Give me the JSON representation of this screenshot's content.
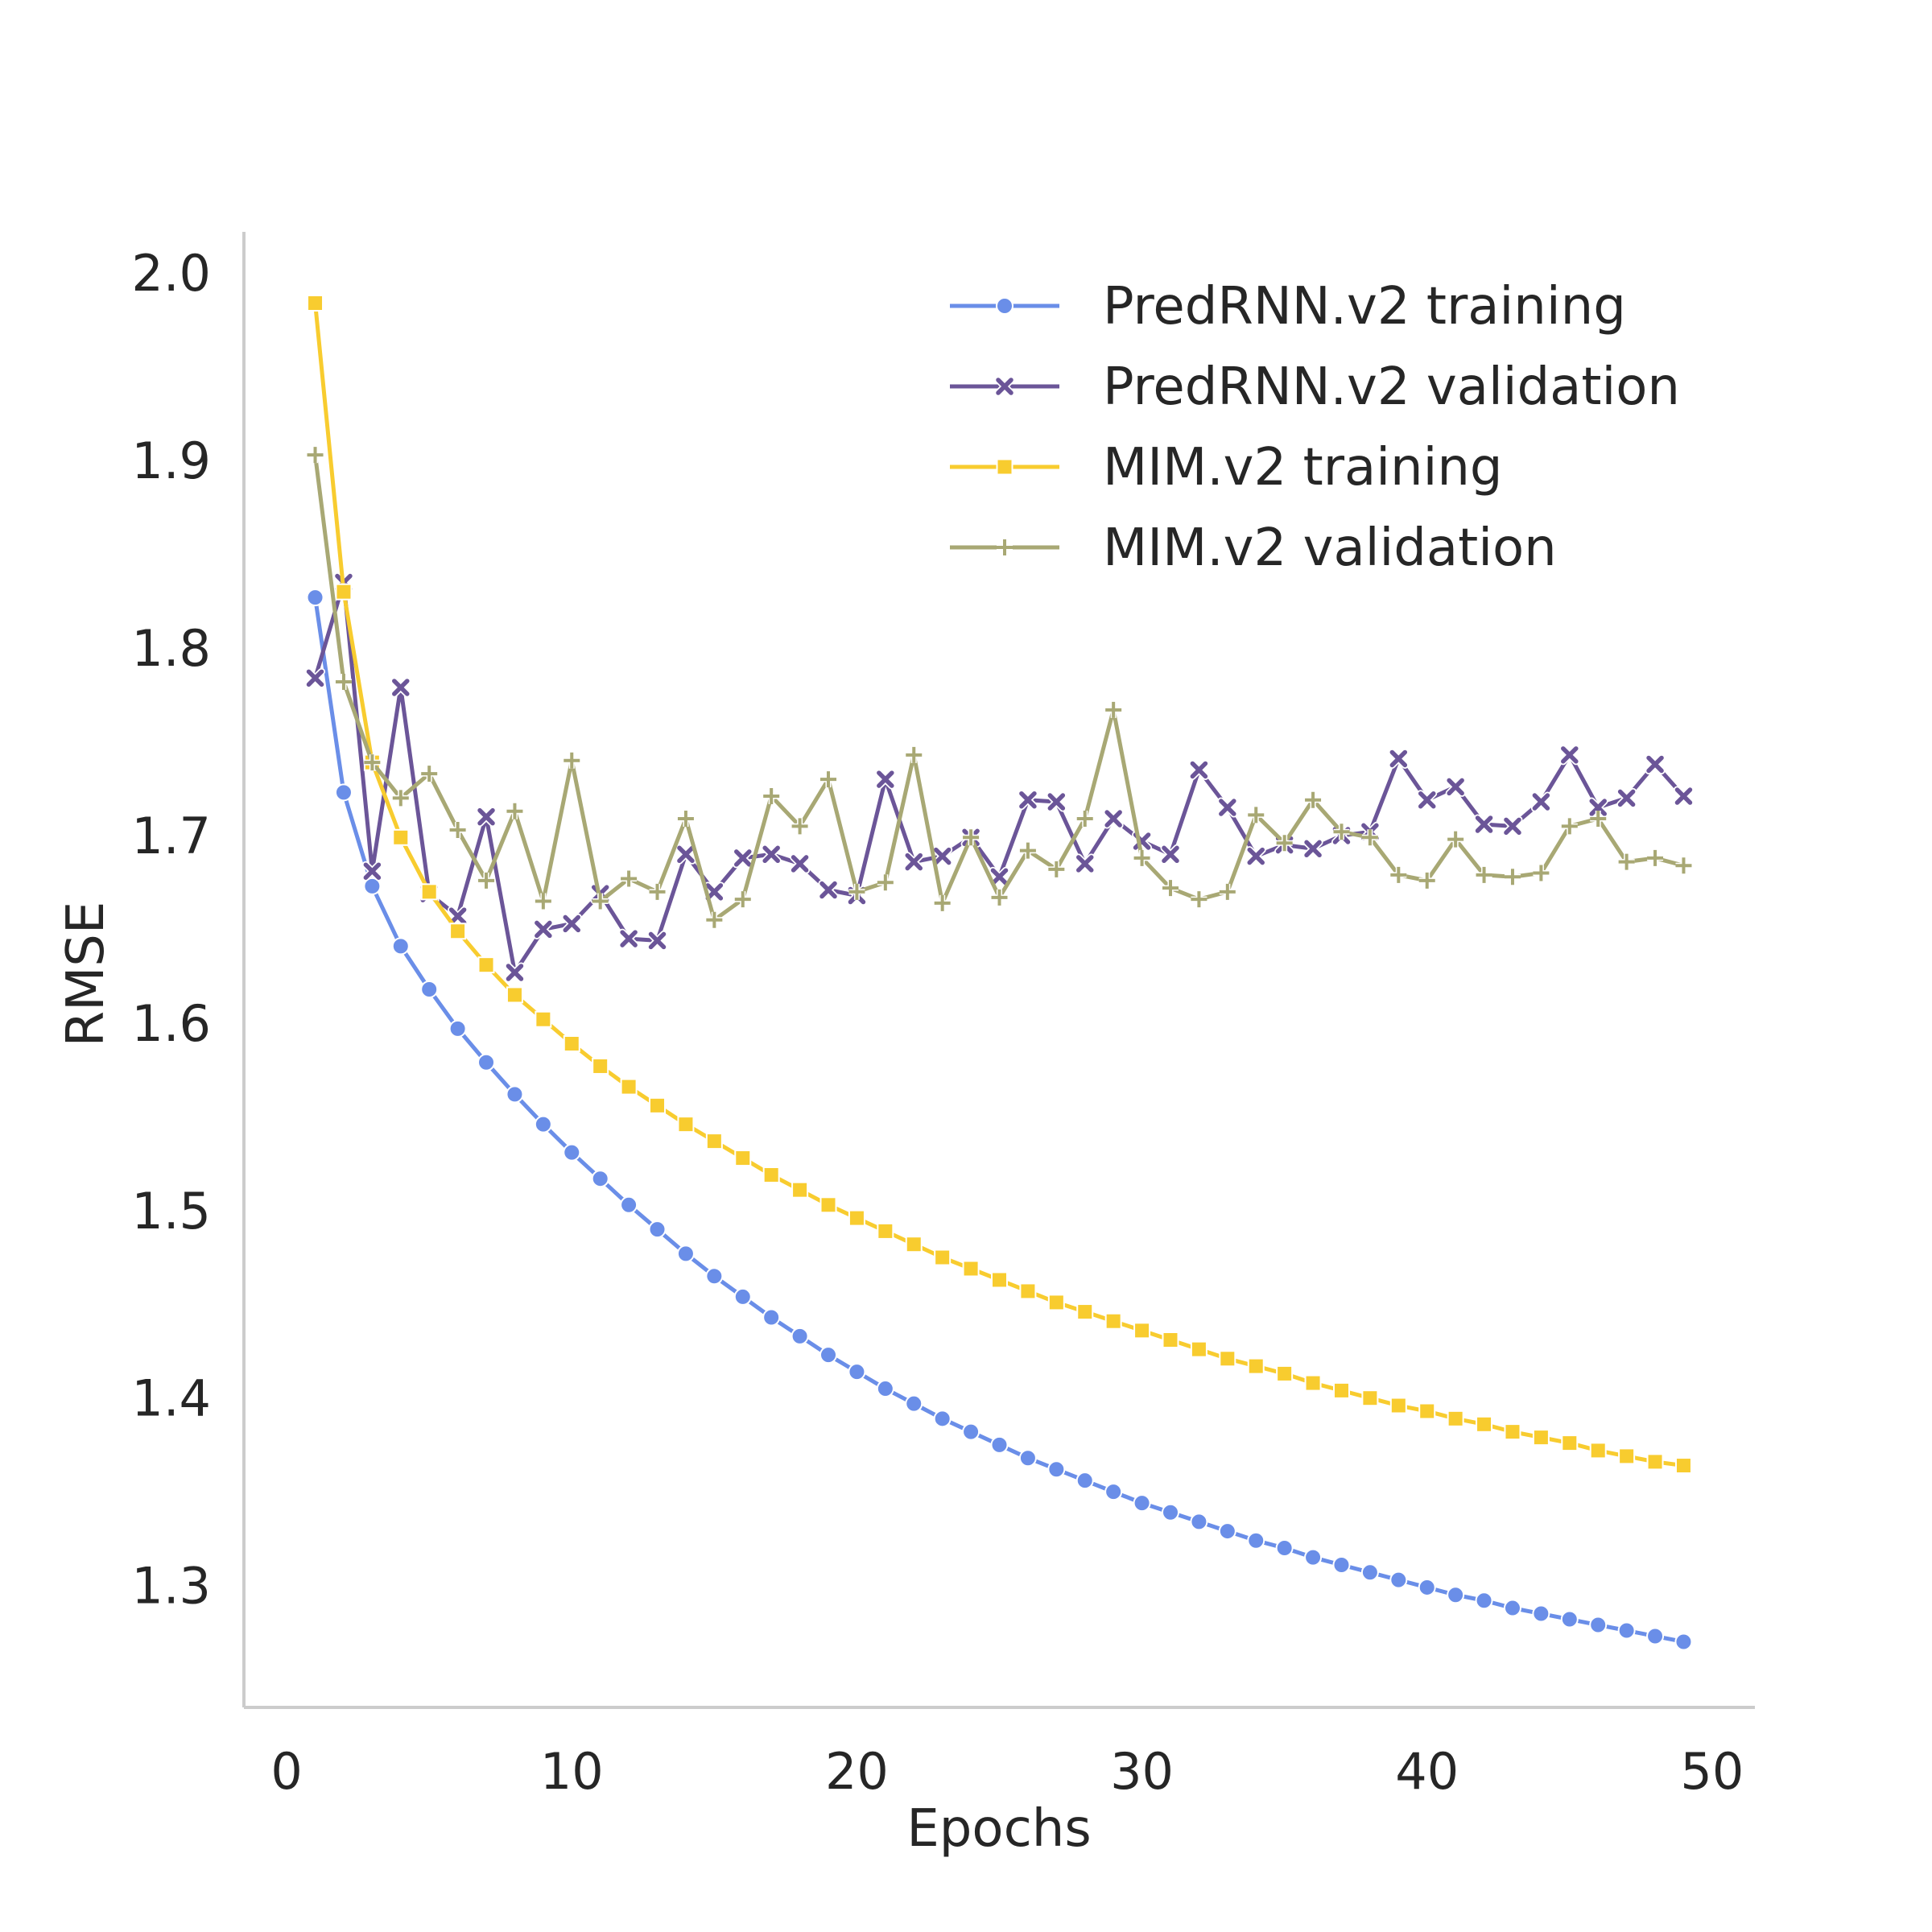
{
  "chart_data": {
    "type": "line",
    "title": "",
    "xlabel": "Epochs",
    "ylabel": "RMSE",
    "xlim": [
      -1.5,
      51.5
    ],
    "ylim": [
      1.235,
      2.022
    ],
    "xticks": [
      0,
      10,
      20,
      30,
      40,
      50
    ],
    "xtick_labels": [
      "0",
      "10",
      "20",
      "30",
      "40",
      "50"
    ],
    "yticks": [
      1.3,
      1.4,
      1.5,
      1.6,
      1.7,
      1.8,
      1.9,
      2.0
    ],
    "ytick_labels": [
      "1.3",
      "1.4",
      "1.5",
      "1.6",
      "1.7",
      "1.8",
      "1.9",
      "2.0"
    ],
    "grid": false,
    "legend_position": "top-right",
    "x": [
      1,
      2,
      3,
      4,
      5,
      6,
      7,
      8,
      9,
      10,
      11,
      12,
      13,
      14,
      15,
      16,
      17,
      18,
      19,
      20,
      21,
      22,
      23,
      24,
      25,
      26,
      27,
      28,
      29,
      30,
      31,
      32,
      33,
      34,
      35,
      36,
      37,
      38,
      39,
      40,
      41,
      42,
      43,
      44,
      45,
      46,
      47,
      48,
      49
    ],
    "series": [
      {
        "name": "PredRNN.v2 training",
        "color": "#6a8ee8",
        "marker": "circle",
        "values": [
          1.827,
          1.723,
          1.673,
          1.641,
          1.618,
          1.597,
          1.579,
          1.562,
          1.546,
          1.531,
          1.517,
          1.503,
          1.49,
          1.477,
          1.465,
          1.454,
          1.443,
          1.433,
          1.423,
          1.414,
          1.405,
          1.397,
          1.389,
          1.382,
          1.375,
          1.368,
          1.362,
          1.356,
          1.35,
          1.344,
          1.339,
          1.334,
          1.329,
          1.324,
          1.32,
          1.315,
          1.311,
          1.307,
          1.303,
          1.299,
          1.295,
          1.292,
          1.288,
          1.285,
          1.282,
          1.279,
          1.276,
          1.273,
          1.27
        ]
      },
      {
        "name": "PredRNN.v2 validation",
        "color": "#6b5598",
        "marker": "x",
        "values": [
          1.784,
          1.835,
          1.681,
          1.779,
          1.669,
          1.657,
          1.71,
          1.627,
          1.65,
          1.653,
          1.669,
          1.645,
          1.644,
          1.69,
          1.67,
          1.688,
          1.69,
          1.685,
          1.671,
          1.668,
          1.73,
          1.686,
          1.689,
          1.699,
          1.678,
          1.719,
          1.718,
          1.685,
          1.709,
          1.697,
          1.69,
          1.735,
          1.715,
          1.689,
          1.695,
          1.693,
          1.7,
          1.702,
          1.741,
          1.719,
          1.726,
          1.706,
          1.705,
          1.718,
          1.743,
          1.715,
          1.72,
          1.738,
          1.721
        ]
      },
      {
        "name": "MIM.v2 training",
        "color": "#f8cc2f",
        "marker": "square",
        "values": [
          1.984,
          1.83,
          1.739,
          1.699,
          1.67,
          1.649,
          1.631,
          1.615,
          1.602,
          1.589,
          1.577,
          1.566,
          1.556,
          1.546,
          1.537,
          1.528,
          1.519,
          1.511,
          1.503,
          1.496,
          1.489,
          1.482,
          1.475,
          1.469,
          1.463,
          1.457,
          1.451,
          1.446,
          1.441,
          1.436,
          1.431,
          1.426,
          1.421,
          1.417,
          1.413,
          1.408,
          1.404,
          1.4,
          1.396,
          1.393,
          1.389,
          1.386,
          1.382,
          1.379,
          1.376,
          1.372,
          1.369,
          1.366,
          1.364
        ]
      },
      {
        "name": "MIM.v2 validation",
        "color": "#a8a874",
        "marker": "plus",
        "values": [
          1.903,
          1.782,
          1.739,
          1.72,
          1.733,
          1.703,
          1.676,
          1.713,
          1.665,
          1.74,
          1.665,
          1.677,
          1.67,
          1.709,
          1.655,
          1.666,
          1.721,
          1.705,
          1.73,
          1.67,
          1.675,
          1.743,
          1.664,
          1.699,
          1.667,
          1.692,
          1.682,
          1.709,
          1.767,
          1.688,
          1.672,
          1.666,
          1.67,
          1.711,
          1.696,
          1.719,
          1.702,
          1.699,
          1.679,
          1.676,
          1.698,
          1.679,
          1.678,
          1.68,
          1.705,
          1.709,
          1.686,
          1.688,
          1.684
        ]
      }
    ]
  }
}
